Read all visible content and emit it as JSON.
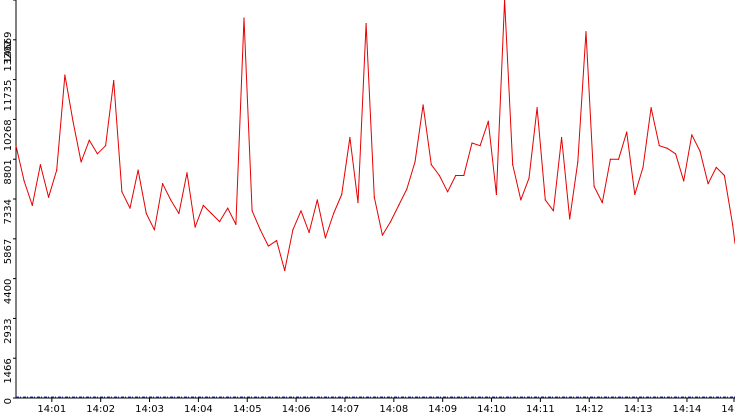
{
  "chart_data": {
    "type": "line",
    "title": "",
    "xlabel": "",
    "ylabel": "",
    "x_tick_labels": [
      "14:01",
      "14:02",
      "14:03",
      "14:04",
      "14:05",
      "14:06",
      "14:07",
      "14:08",
      "14:09",
      "14:10",
      "14:11",
      "14:12",
      "14:13",
      "14:14",
      "14"
    ],
    "y_tick_labels": [
      "0",
      "1466",
      "2933",
      "4400",
      "5867",
      "7334",
      "8801",
      "10268",
      "11735",
      "13202",
      "14669"
    ],
    "ylim": [
      0,
      14669
    ],
    "x_time_range": [
      "14:00:16",
      "14:14:59"
    ],
    "grid": false,
    "colors": {
      "series": "#e60000",
      "baseline": "#1f3ca8",
      "axis": "#000000"
    },
    "series": [
      {
        "x": [
          "14:00:16",
          "14:00:26",
          "14:00:36",
          "14:00:46",
          "14:00:56",
          "14:01:06",
          "14:01:16",
          "14:01:26",
          "14:01:36",
          "14:01:46",
          "14:01:56",
          "14:02:06",
          "14:02:16",
          "14:02:26",
          "14:02:36",
          "14:02:46",
          "14:02:56",
          "14:03:06",
          "14:03:16",
          "14:03:26",
          "14:03:36",
          "14:03:46",
          "14:03:56",
          "14:04:06",
          "14:04:16",
          "14:04:26",
          "14:04:36",
          "14:04:46",
          "14:04:56",
          "14:05:06",
          "14:05:16",
          "14:05:26",
          "14:05:36",
          "14:05:46",
          "14:05:56",
          "14:06:06",
          "14:06:16",
          "14:06:26",
          "14:06:36",
          "14:06:46",
          "14:06:56",
          "14:07:06",
          "14:07:16",
          "14:07:26",
          "14:07:36",
          "14:07:46",
          "14:07:56",
          "14:08:06",
          "14:08:16",
          "14:08:26",
          "14:08:36",
          "14:08:46",
          "14:08:56",
          "14:09:06",
          "14:09:16",
          "14:09:26",
          "14:09:36",
          "14:09:46",
          "14:09:56",
          "14:10:06",
          "14:10:16",
          "14:10:26",
          "14:10:36",
          "14:10:46",
          "14:10:56",
          "14:11:06",
          "14:11:16",
          "14:11:26",
          "14:11:36",
          "14:11:46",
          "14:11:56",
          "14:12:06",
          "14:12:16",
          "14:12:26",
          "14:12:36",
          "14:12:46",
          "14:12:56",
          "14:13:06",
          "14:13:16",
          "14:13:26",
          "14:13:36",
          "14:13:46",
          "14:13:56",
          "14:14:06",
          "14:14:16",
          "14:14:26",
          "14:14:36",
          "14:14:46",
          "14:14:56",
          "14:14:59"
        ],
        "values": [
          9300,
          8000,
          7100,
          8600,
          7400,
          8400,
          11900,
          10200,
          8700,
          9500,
          9000,
          9300,
          11700,
          7600,
          7000,
          8400,
          6800,
          6200,
          7900,
          7300,
          6800,
          8300,
          6300,
          7100,
          6800,
          6500,
          7000,
          6400,
          14000,
          6900,
          6200,
          5600,
          5800,
          4700,
          6200,
          6900,
          6100,
          7300,
          5900,
          6800,
          7500,
          9600,
          7200,
          13800,
          7400,
          6000,
          6500,
          7100,
          7700,
          8700,
          10800,
          8600,
          8200,
          7600,
          8200,
          8200,
          9400,
          9300,
          10200,
          7500,
          14669,
          8600,
          7300,
          8100,
          10700,
          7300,
          6900,
          9600,
          6600,
          8700,
          13500,
          7800,
          7200,
          8800,
          8800,
          9800,
          7500,
          8500,
          10700,
          9300,
          9200,
          9000,
          8000,
          9700,
          9100,
          7900,
          8500,
          8200,
          6400,
          5700
        ]
      }
    ]
  }
}
